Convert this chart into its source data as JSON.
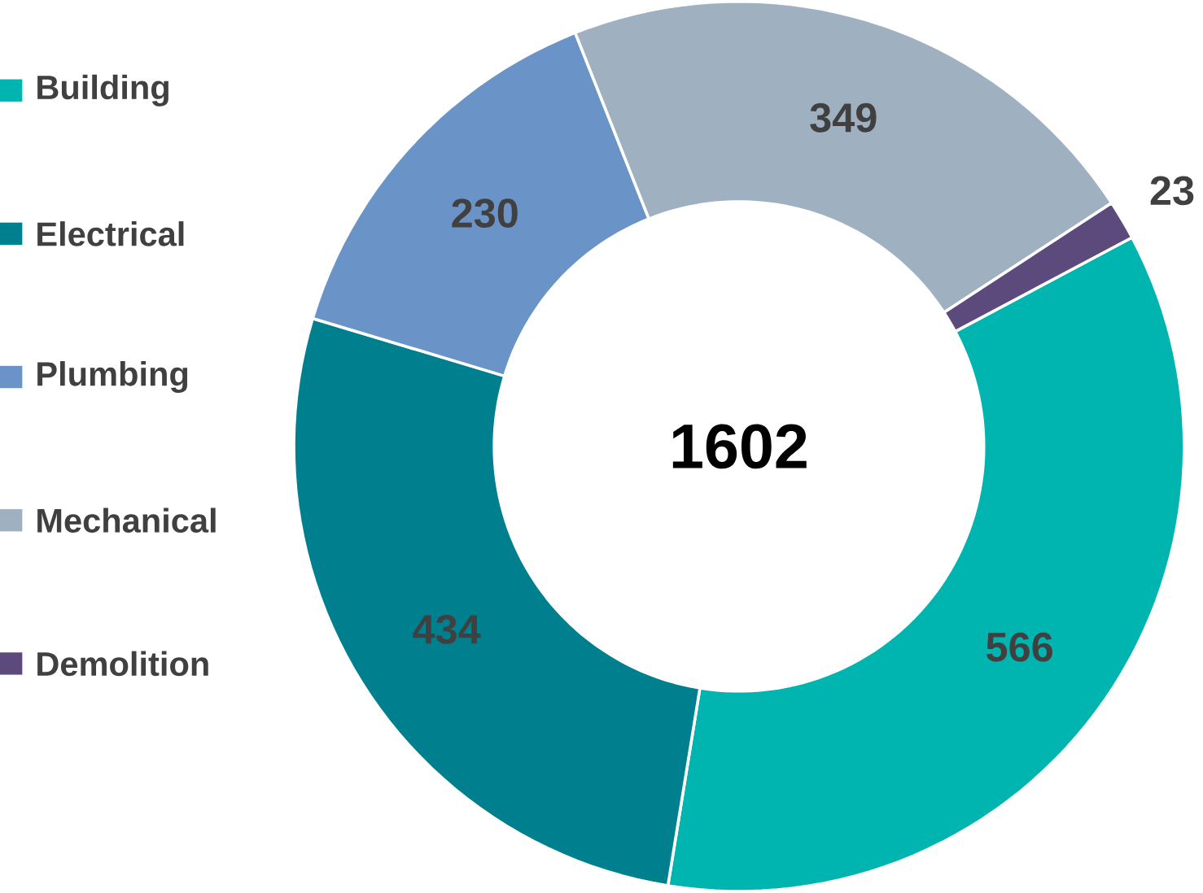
{
  "chart_data": {
    "type": "donut",
    "categories": [
      "Building",
      "Electrical",
      "Plumbing",
      "Mechanical",
      "Demolition"
    ],
    "values": [
      566,
      434,
      230,
      349,
      23
    ],
    "colors": [
      "#00b5b0",
      "#00808f",
      "#6a93c8",
      "#9fb0c0",
      "#5c4a7c"
    ],
    "data_labels": true,
    "legend": "left",
    "annotations": [
      "1602"
    ]
  }
}
